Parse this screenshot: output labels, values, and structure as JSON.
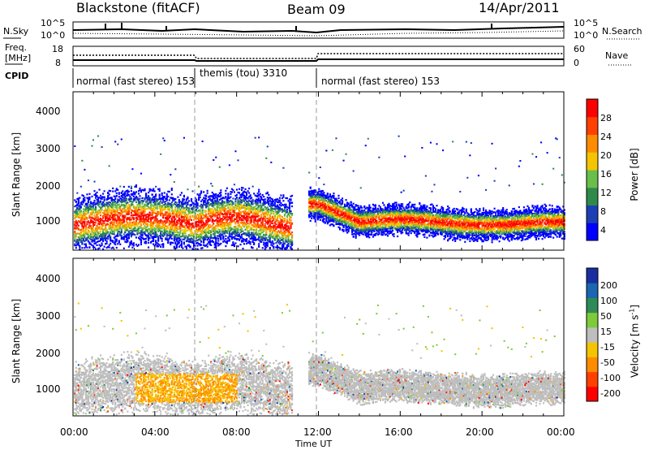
{
  "header": {
    "station": "Blackstone (fitACF)",
    "beam": "Beam 09",
    "date": "14/Apr/2011"
  },
  "top_panel": {
    "left_label": "N.Sky",
    "right_label": "N.Search",
    "left_ticks": [
      "10^5",
      "10^0"
    ],
    "right_ticks": [
      "10^5",
      "10^0"
    ]
  },
  "freq_panel": {
    "left_label_1": "Freq.",
    "left_label_2": "[MHz]",
    "left_ticks": [
      "18",
      "8"
    ],
    "right_ticks": [
      "60",
      "0"
    ],
    "right_label": "Nave"
  },
  "cpid": {
    "label": "CPID",
    "segments": [
      {
        "text": "normal (fast stereo) 153",
        "start_h": 0,
        "end_h": 6
      },
      {
        "text": "themis (tou) 3310",
        "start_h": 6,
        "end_h": 12
      },
      {
        "text": "normal (fast stereo) 153",
        "start_h": 12,
        "end_h": 24
      }
    ]
  },
  "time_axis": {
    "label": "Time UT",
    "ticks": [
      "00:00",
      "04:00",
      "08:00",
      "12:00",
      "16:00",
      "20:00",
      "00:00"
    ]
  },
  "chart_data": [
    {
      "type": "heatmap",
      "ylabel": "Slant Range [km]",
      "xlabel": "Time UT",
      "xlim_hours": [
        0,
        24
      ],
      "ylim_km": [
        200,
        4600
      ],
      "yticks": [
        1000,
        2000,
        3000,
        4000
      ],
      "colorbar": {
        "label": "Power [dB]",
        "ticks": [
          "4",
          "8",
          "12",
          "16",
          "20",
          "24",
          "28"
        ],
        "colors": [
          "#0000ff",
          "#1c3fb5",
          "#2f8a4a",
          "#6abf4b",
          "#f5c400",
          "#ff8c00",
          "#ff4000",
          "#ff0000"
        ]
      }
    },
    {
      "type": "heatmap",
      "ylabel": "Slant Range [km]",
      "xlabel": "Time UT",
      "xlim_hours": [
        0,
        24
      ],
      "ylim_km": [
        200,
        4600
      ],
      "yticks": [
        1000,
        2000,
        3000,
        4000
      ],
      "colorbar": {
        "label": "Velocity [m s^-1]",
        "ticks": [
          "200",
          "100",
          "50",
          "15",
          "-15",
          "-50",
          "-100",
          "-200"
        ],
        "colors": [
          "#1a2ea0",
          "#1a66b0",
          "#2e8b57",
          "#7ecb3a",
          "#bebebe",
          "#f5c400",
          "#ff8c00",
          "#ff4000",
          "#ff0000"
        ]
      }
    }
  ]
}
